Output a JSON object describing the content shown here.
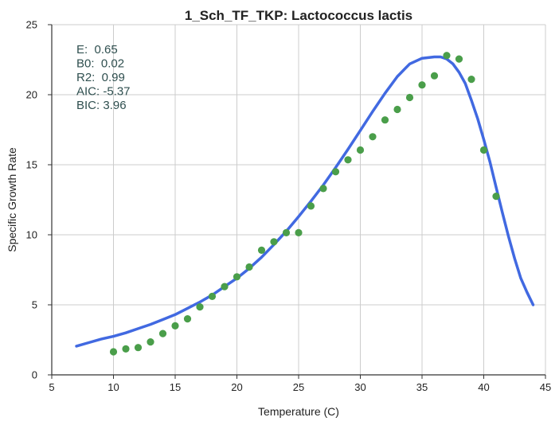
{
  "chart_data": {
    "type": "scatter",
    "title": "1_Sch_TF_TKP: Lactococcus lactis",
    "xlabel": "Temperature (C)",
    "ylabel": "Specific Growth Rate",
    "xlim": [
      5,
      45
    ],
    "ylim": [
      0,
      25
    ],
    "x_ticks": [
      "5",
      "10",
      "15",
      "20",
      "25",
      "30",
      "35",
      "40",
      "45"
    ],
    "y_ticks": [
      "0",
      "5",
      "10",
      "15",
      "20",
      "25"
    ],
    "grid": true,
    "series": [
      {
        "kind": "scatter",
        "color": "#4a9e4a",
        "points": [
          [
            10,
            1.65
          ],
          [
            11,
            1.85
          ],
          [
            12,
            1.95
          ],
          [
            13,
            2.35
          ],
          [
            14,
            2.95
          ],
          [
            15,
            3.5
          ],
          [
            16,
            4.0
          ],
          [
            17,
            4.85
          ],
          [
            18,
            5.6
          ],
          [
            19,
            6.3
          ],
          [
            20,
            7.0
          ],
          [
            21,
            7.7
          ],
          [
            22,
            8.9
          ],
          [
            23,
            9.5
          ],
          [
            24,
            10.15
          ],
          [
            25,
            10.15
          ],
          [
            26,
            12.05
          ],
          [
            27,
            13.3
          ],
          [
            28,
            14.5
          ],
          [
            29,
            15.35
          ],
          [
            30,
            16.05
          ],
          [
            31,
            17.0
          ],
          [
            32,
            18.2
          ],
          [
            33,
            18.95
          ],
          [
            34,
            19.8
          ],
          [
            35,
            20.7
          ],
          [
            36,
            21.35
          ],
          [
            37,
            22.8
          ],
          [
            38,
            22.55
          ],
          [
            39,
            21.1
          ],
          [
            40,
            16.05
          ],
          [
            41,
            12.75
          ]
        ]
      },
      {
        "kind": "line",
        "color": "#4169e1",
        "points": [
          [
            7,
            2.05
          ],
          [
            8,
            2.3
          ],
          [
            9,
            2.55
          ],
          [
            10,
            2.75
          ],
          [
            11,
            3.0
          ],
          [
            12,
            3.3
          ],
          [
            13,
            3.6
          ],
          [
            14,
            3.95
          ],
          [
            15,
            4.3
          ],
          [
            16,
            4.75
          ],
          [
            17,
            5.2
          ],
          [
            18,
            5.7
          ],
          [
            19,
            6.3
          ],
          [
            20,
            6.9
          ],
          [
            21,
            7.6
          ],
          [
            22,
            8.4
          ],
          [
            23,
            9.3
          ],
          [
            24,
            10.25
          ],
          [
            25,
            11.3
          ],
          [
            26,
            12.4
          ],
          [
            27,
            13.55
          ],
          [
            28,
            14.8
          ],
          [
            29,
            16.1
          ],
          [
            30,
            17.45
          ],
          [
            31,
            18.8
          ],
          [
            32,
            20.1
          ],
          [
            33,
            21.3
          ],
          [
            34,
            22.2
          ],
          [
            35,
            22.6
          ],
          [
            35.5,
            22.65
          ],
          [
            36,
            22.7
          ],
          [
            36.5,
            22.7
          ],
          [
            37,
            22.55
          ],
          [
            37.5,
            22.2
          ],
          [
            38,
            21.6
          ],
          [
            38.5,
            20.8
          ],
          [
            39,
            19.6
          ],
          [
            39.5,
            18.3
          ],
          [
            40,
            16.8
          ],
          [
            40.5,
            15.2
          ],
          [
            41,
            13.4
          ],
          [
            41.5,
            11.6
          ],
          [
            42,
            9.9
          ],
          [
            42.5,
            8.3
          ],
          [
            43,
            6.9
          ],
          [
            43.5,
            5.9
          ],
          [
            44,
            5.0
          ]
        ]
      }
    ],
    "annotations": [
      "E:  0.65",
      "B0:  0.02",
      "R2:  0.99",
      "AIC: -5.37",
      "BIC: 3.96"
    ],
    "annotation_color": "#2f4f4f"
  }
}
